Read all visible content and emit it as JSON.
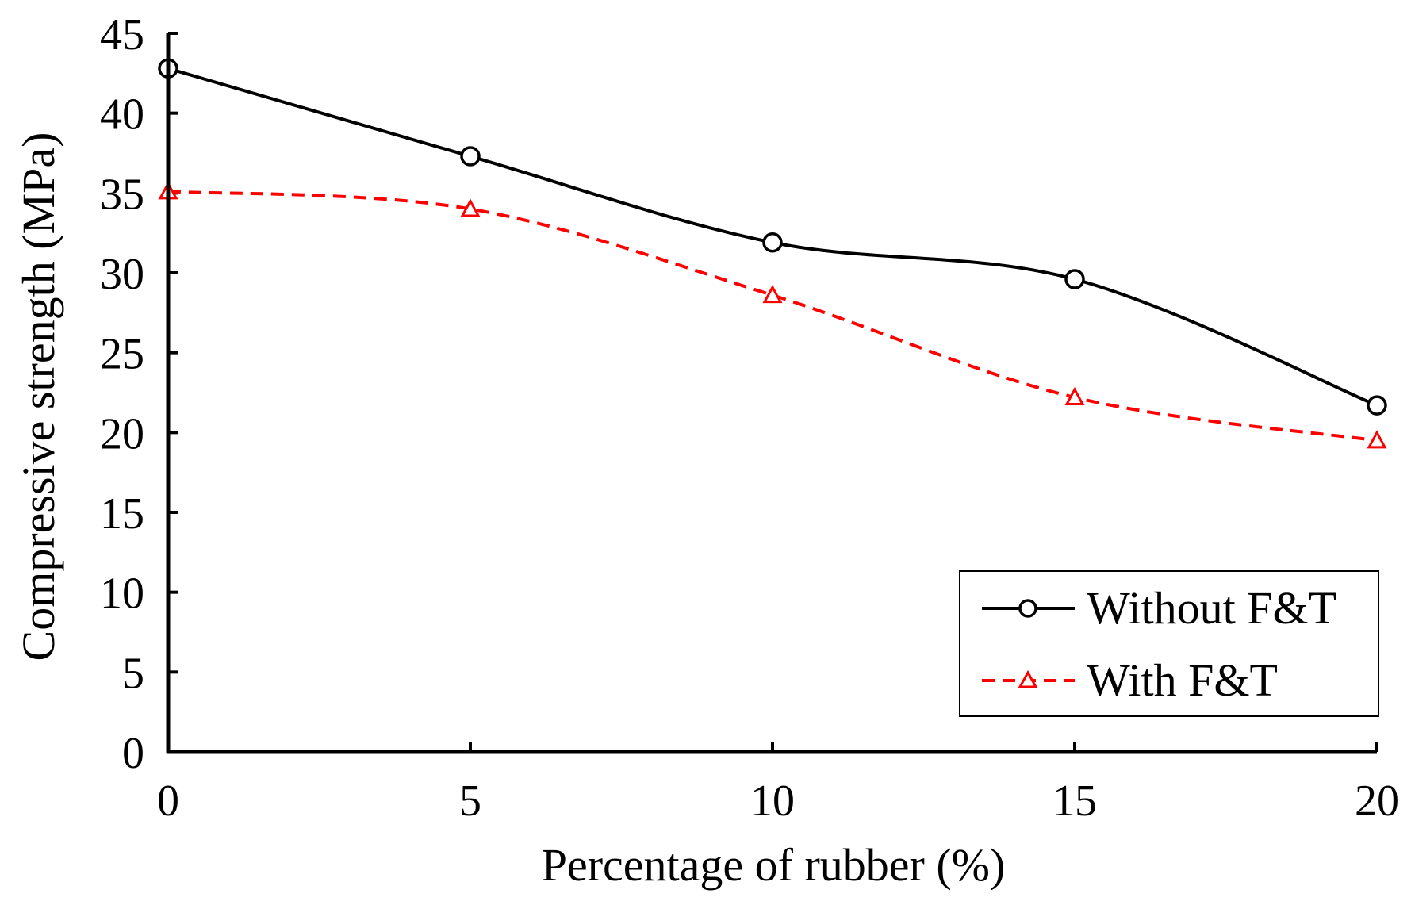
{
  "chart_data": {
    "type": "line",
    "title": "",
    "xlabel": "Percentage of rubber (%)",
    "ylabel": "Compressive strength (MPa)",
    "x": [
      0,
      5,
      10,
      15,
      20
    ],
    "xlim": [
      0,
      20
    ],
    "ylim": [
      0,
      45
    ],
    "xticks": [
      "0",
      "5",
      "10",
      "15",
      "20"
    ],
    "yticks": [
      "0",
      "5",
      "10",
      "15",
      "20",
      "25",
      "30",
      "35",
      "40",
      "45"
    ],
    "grid": false,
    "legend_position": "bottom-right",
    "series": [
      {
        "name": "Without F&T",
        "values": [
          42.8,
          37.3,
          31.9,
          29.6,
          21.7
        ],
        "color": "#000000",
        "line_style": "solid",
        "marker": "circle"
      },
      {
        "name": "With F&T",
        "values": [
          35.1,
          34.0,
          28.6,
          22.2,
          19.5
        ],
        "color": "#ff0000",
        "line_style": "dashed",
        "marker": "triangle"
      }
    ]
  }
}
